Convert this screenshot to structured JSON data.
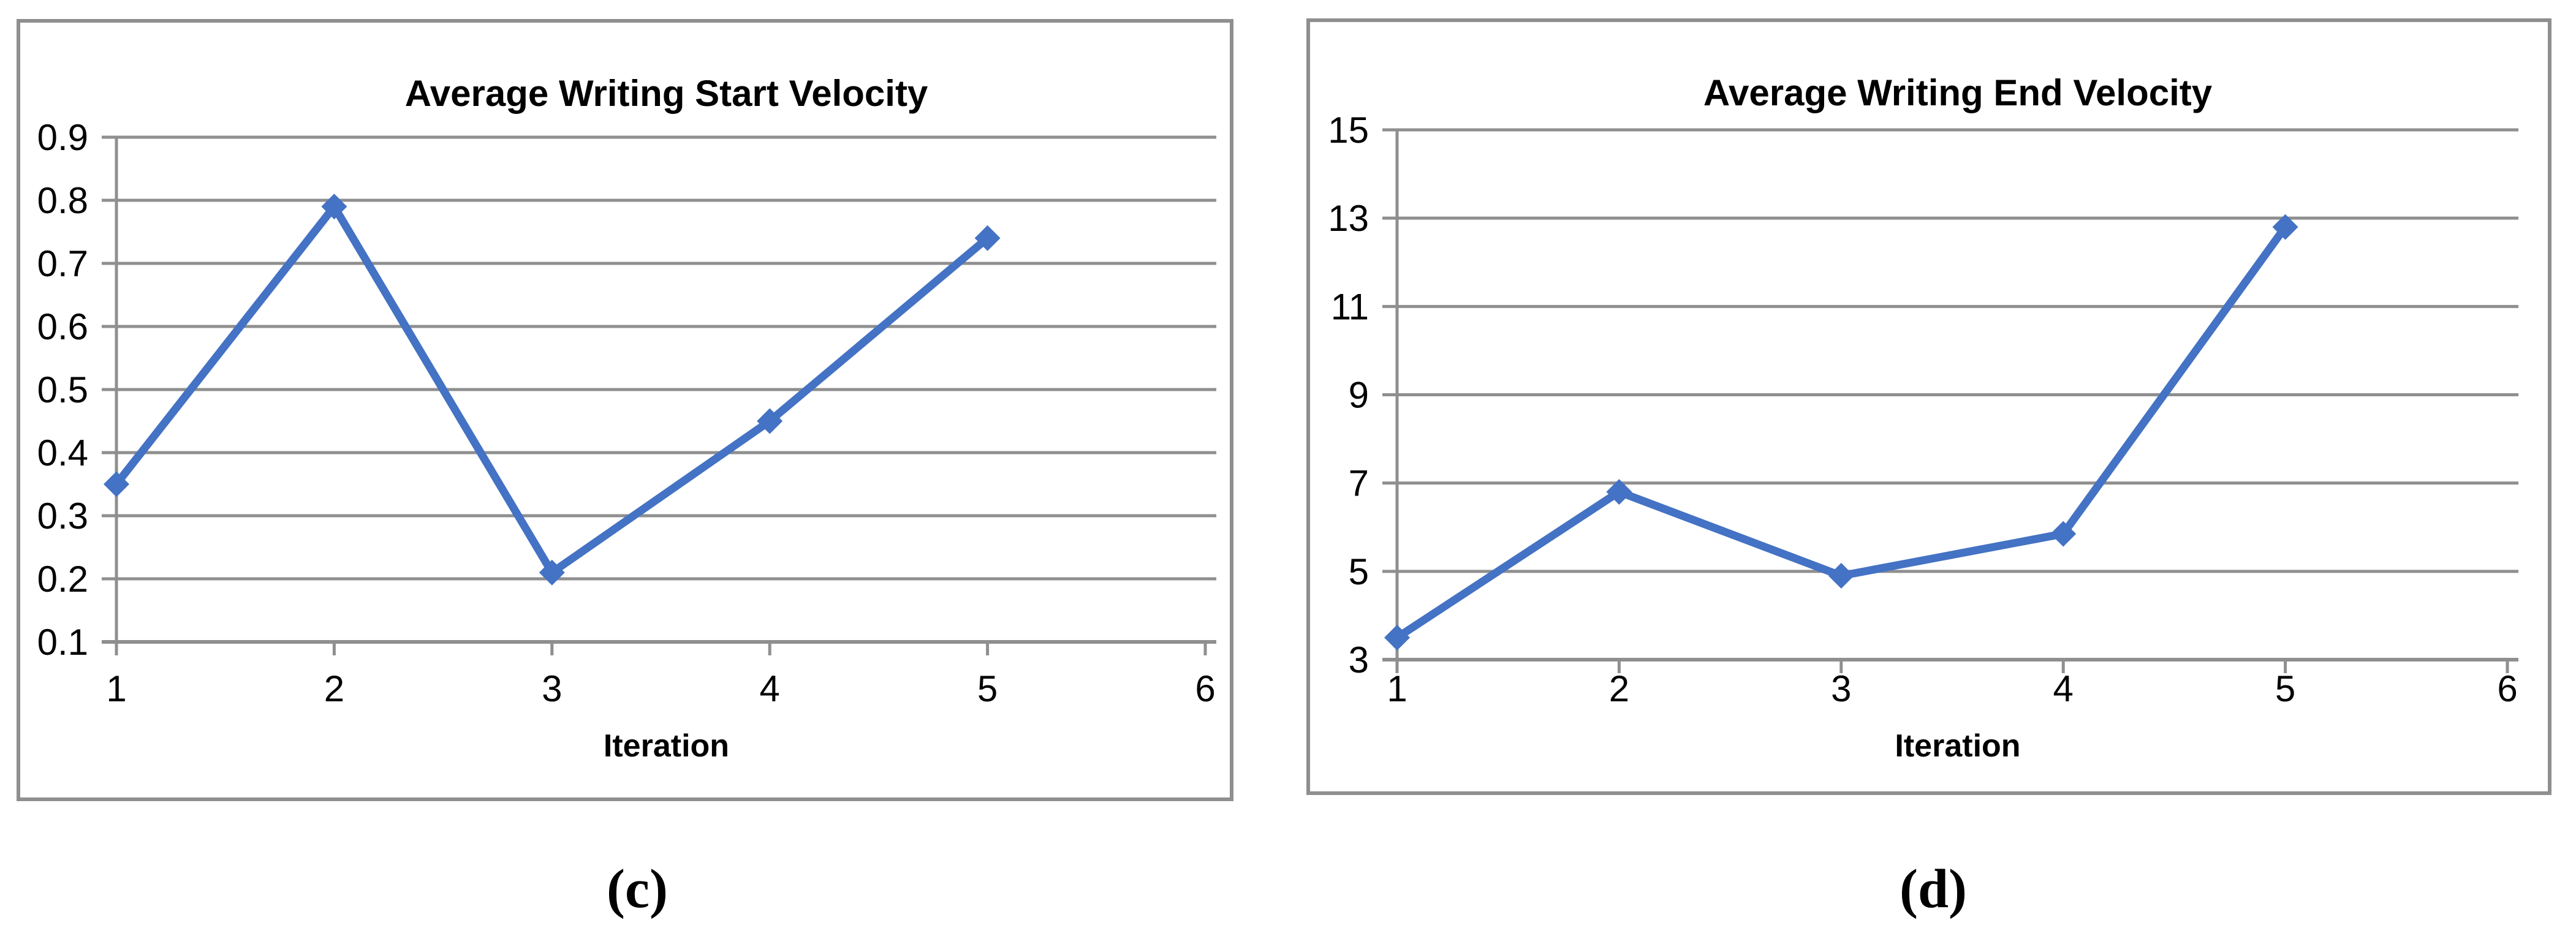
{
  "colors": {
    "line": "#4472c4",
    "grid": "#8f8f8f",
    "panel_border": "#8f8f8f",
    "text": "#000000",
    "background": "#ffffff"
  },
  "chart_data": [
    {
      "type": "line",
      "title": "Average Writing Start Velocity",
      "xlabel": "Iteration",
      "ylabel": "",
      "caption": "(c)",
      "x": [
        1,
        2,
        3,
        4,
        5
      ],
      "values": [
        0.35,
        0.79,
        0.21,
        0.45,
        0.74
      ],
      "xticks": [
        "1",
        "2",
        "3",
        "4",
        "5",
        "6"
      ],
      "yticks": [
        "0.1",
        "0.2",
        "0.3",
        "0.4",
        "0.5",
        "0.6",
        "0.7",
        "0.8",
        "0.9"
      ],
      "xlim": [
        1,
        6
      ],
      "ylim": [
        0.1,
        0.9
      ],
      "grid": "horizontal",
      "legend": "none",
      "marker": "diamond"
    },
    {
      "type": "line",
      "title": "Average Writing End Velocity",
      "xlabel": "Iteration",
      "ylabel": "",
      "caption": "(d)",
      "x": [
        1,
        2,
        3,
        4,
        5
      ],
      "values": [
        3.5,
        6.8,
        4.9,
        5.85,
        12.8
      ],
      "xticks": [
        "1",
        "2",
        "3",
        "4",
        "5",
        "6"
      ],
      "yticks": [
        "3",
        "5",
        "7",
        "9",
        "11",
        "13",
        "15"
      ],
      "xlim": [
        1,
        6
      ],
      "ylim": [
        3,
        15
      ],
      "grid": "horizontal",
      "legend": "none",
      "marker": "diamond"
    }
  ]
}
